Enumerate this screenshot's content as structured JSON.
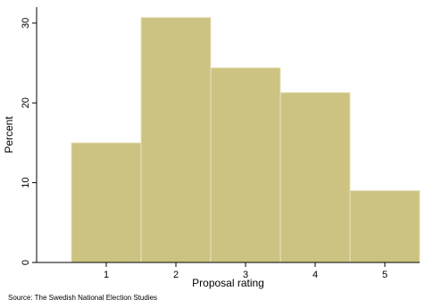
{
  "chart_data": {
    "type": "bar",
    "categories": [
      "1",
      "2",
      "3",
      "4",
      "5"
    ],
    "values": [
      15.0,
      30.7,
      24.4,
      21.3,
      9.0
    ],
    "xlabel": "Proposal rating",
    "ylabel": "Percent",
    "ylim": [
      0,
      32
    ],
    "yticks": [
      0,
      10,
      20,
      30
    ],
    "xlim": [
      0,
      5.5
    ],
    "grid": false,
    "legend": "none",
    "note": "Source: The Swedish National Election Studies",
    "colors": {
      "bar_fill": "#CCC282",
      "bar_edge": "#EAE4BC",
      "axis": "#000000",
      "background": "#FFFFFF"
    }
  }
}
